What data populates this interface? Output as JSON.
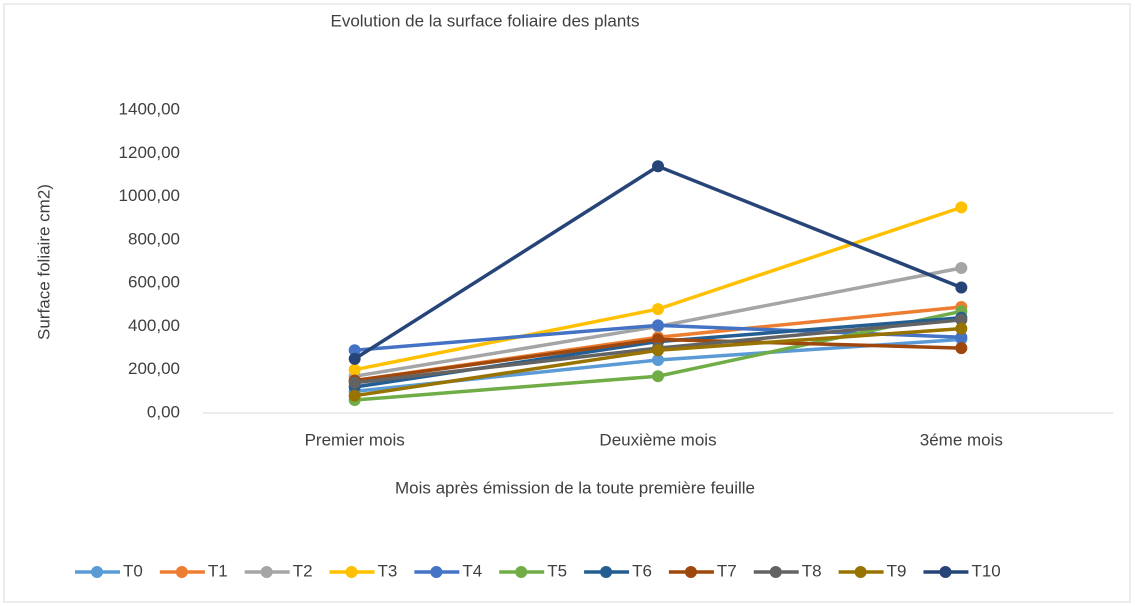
{
  "chart_data": {
    "type": "line",
    "title": "Evolution de la surface foliaire des plants",
    "x_label": "Mois après émission de la toute première feuille",
    "y_label": "Surface foliaire cm2)",
    "categories": [
      "Premier mois",
      "Deuxième mois",
      "3éme mois"
    ],
    "ylim": [
      0,
      1400
    ],
    "yticks": [
      {
        "value": 0,
        "label": "0,00"
      },
      {
        "value": 200,
        "label": "200,00"
      },
      {
        "value": 400,
        "label": "400,00"
      },
      {
        "value": 600,
        "label": "600,00"
      },
      {
        "value": 800,
        "label": "800,00"
      },
      {
        "value": 1000,
        "label": "1000,00"
      },
      {
        "value": 1200,
        "label": "1200,00"
      },
      {
        "value": 1400,
        "label": "1400,00"
      }
    ],
    "legend": "bottom",
    "series": [
      {
        "name": "T0",
        "color": "#5b9bd5",
        "values": [
          100,
          245,
          340
        ]
      },
      {
        "name": "T1",
        "color": "#ed7d31",
        "values": [
          150,
          350,
          490
        ]
      },
      {
        "name": "T2",
        "color": "#a5a5a5",
        "values": [
          170,
          400,
          670
        ]
      },
      {
        "name": "T3",
        "color": "#ffc000",
        "values": [
          200,
          480,
          950
        ]
      },
      {
        "name": "T4",
        "color": "#4472c4",
        "values": [
          290,
          405,
          350
        ]
      },
      {
        "name": "T5",
        "color": "#70ad47",
        "values": [
          60,
          170,
          470
        ]
      },
      {
        "name": "T6",
        "color": "#255e91",
        "values": [
          120,
          330,
          440
        ]
      },
      {
        "name": "T7",
        "color": "#9e480e",
        "values": [
          150,
          340,
          300
        ]
      },
      {
        "name": "T8",
        "color": "#636363",
        "values": [
          140,
          300,
          430
        ]
      },
      {
        "name": "T9",
        "color": "#997300",
        "values": [
          80,
          290,
          390
        ]
      },
      {
        "name": "T10",
        "color": "#264478",
        "values": [
          250,
          1140,
          580
        ]
      }
    ]
  }
}
